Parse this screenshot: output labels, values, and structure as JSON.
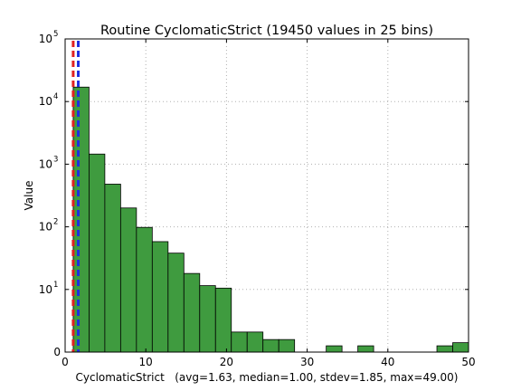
{
  "chart_data": {
    "type": "bar",
    "title": "Routine CyclomaticStrict (19450 values in 25 bins)",
    "xlabel": "CyclomaticStrict   (avg=1.63, median=1.00, stdev=1.85, max=49.00)",
    "ylabel": "Value",
    "xlim": [
      0,
      50
    ],
    "y_scale": "log",
    "ylim_exponent": [
      0,
      5
    ],
    "grid": true,
    "x_ticks": [
      "0",
      "10",
      "20",
      "30",
      "40",
      "50"
    ],
    "y_ticks": [
      {
        "base": "0",
        "exp": ""
      },
      {
        "base": "10",
        "exp": "1"
      },
      {
        "base": "10",
        "exp": "2"
      },
      {
        "base": "10",
        "exp": "3"
      },
      {
        "base": "10",
        "exp": "4"
      },
      {
        "base": "10",
        "exp": "5"
      }
    ],
    "bin_width": 1.96,
    "bin_start": 1,
    "values": [
      17000,
      1450,
      480,
      200,
      98,
      58,
      38,
      18,
      11.5,
      10.5,
      3.2,
      3.2,
      2,
      2,
      0,
      0,
      1,
      0,
      1,
      0,
      0,
      0,
      0,
      1,
      1.5
    ],
    "bar_color": "#3f9b3f",
    "mean": 1.63,
    "median": 1.0,
    "mean_line_color": "#1f2fe0",
    "median_line_color": "#e02020"
  }
}
